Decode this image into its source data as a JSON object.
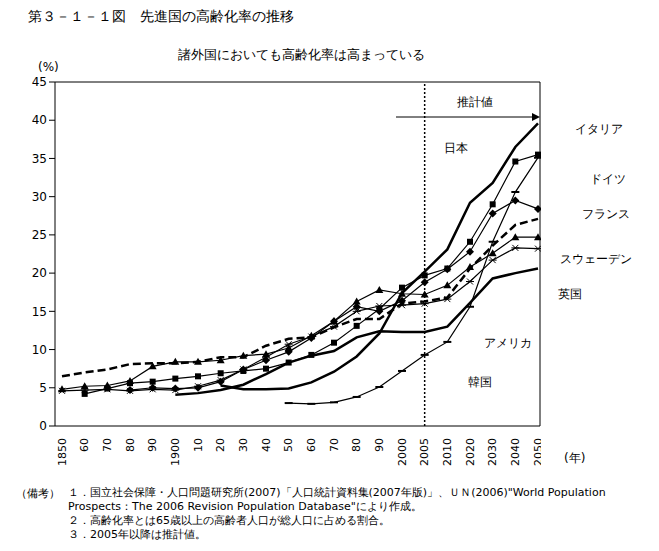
{
  "chart_data": {
    "type": "line",
    "title": "第３－１－１図　先進国の高齢化率の推移",
    "subtitle": "諸外国においても高齢化率は高まっている",
    "y_label": "(%)",
    "x_label": "(年)",
    "categories": [
      "1850",
      "60",
      "70",
      "80",
      "90",
      "1900",
      "10",
      "20",
      "30",
      "40",
      "50",
      "60",
      "70",
      "80",
      "90",
      "2000",
      "2005",
      "2010",
      "2020",
      "2030",
      "2040",
      "2050"
    ],
    "series": [
      {
        "name": "イタリア",
        "color": "#000000",
        "marker": "square",
        "line_style": "solid",
        "values": [
          null,
          4.2,
          4.9,
          5.6,
          5.8,
          6.2,
          6.5,
          6.9,
          7.2,
          7.5,
          8.3,
          9.3,
          10.9,
          13.1,
          15.3,
          18.1,
          19.7,
          20.6,
          24.1,
          29.0,
          34.6,
          35.5
        ]
      },
      {
        "name": "日本",
        "color": "#000000",
        "marker": "none",
        "line_style": "solid",
        "values": [
          null,
          null,
          null,
          null,
          null,
          null,
          null,
          5.3,
          4.8,
          4.8,
          4.9,
          5.7,
          7.1,
          9.1,
          12.1,
          17.4,
          20.2,
          23.1,
          29.2,
          31.8,
          36.5,
          39.6
        ]
      },
      {
        "name": "ドイツ",
        "color": "#000000",
        "marker": "diamond",
        "line_style": "solid",
        "values": [
          null,
          null,
          null,
          4.7,
          5.0,
          4.9,
          5.0,
          5.8,
          7.4,
          8.6,
          9.7,
          11.5,
          13.7,
          15.6,
          15.0,
          16.4,
          18.8,
          20.5,
          22.8,
          27.8,
          29.5,
          28.4
        ]
      },
      {
        "name": "フランス",
        "color": "#000000",
        "marker": "none",
        "line_style": "dashed",
        "values": [
          6.5,
          7.0,
          7.4,
          8.1,
          8.2,
          8.2,
          8.4,
          9.0,
          9.0,
          10.5,
          11.4,
          11.6,
          12.9,
          14.0,
          14.0,
          16.0,
          16.3,
          16.8,
          20.6,
          23.6,
          26.3,
          27.1
        ]
      },
      {
        "name": "スウェーデン",
        "color": "#000000",
        "marker": "triangle",
        "line_style": "solid",
        "values": [
          4.8,
          5.2,
          5.3,
          5.9,
          7.8,
          8.4,
          8.4,
          8.6,
          9.2,
          9.4,
          10.2,
          11.8,
          13.7,
          16.3,
          17.8,
          17.3,
          17.2,
          18.4,
          20.8,
          22.6,
          24.7,
          24.7
        ]
      },
      {
        "name": "英国",
        "color": "#000000",
        "marker": "star",
        "line_style": "solid",
        "values": [
          4.6,
          4.7,
          4.8,
          4.6,
          4.8,
          4.7,
          5.2,
          6.0,
          7.4,
          9.0,
          10.7,
          11.7,
          13.0,
          15.0,
          15.7,
          15.8,
          16.0,
          16.6,
          18.9,
          21.7,
          23.3,
          23.2
        ]
      },
      {
        "name": "アメリカ",
        "color": "#000000",
        "marker": "none",
        "line_style": "solid",
        "values": [
          null,
          null,
          null,
          null,
          null,
          4.1,
          4.3,
          4.7,
          5.4,
          6.8,
          8.3,
          9.2,
          9.8,
          11.6,
          12.4,
          12.3,
          12.3,
          13.0,
          16.1,
          19.3,
          20.0,
          20.6
        ]
      },
      {
        "name": "韓国",
        "color": "#000000",
        "marker": "dash",
        "line_style": "solid",
        "values": [
          null,
          null,
          null,
          null,
          null,
          null,
          null,
          null,
          null,
          null,
          3.0,
          2.9,
          3.1,
          3.8,
          5.1,
          7.2,
          9.3,
          11.0,
          15.6,
          24.1,
          30.6,
          35.1
        ]
      }
    ],
    "ylim": [
      0,
      45
    ],
    "yticks": [
      0,
      5,
      10,
      15,
      20,
      25,
      30,
      35,
      40,
      45
    ],
    "grid": false,
    "annotations": [
      {
        "text": "推計値",
        "x": "2005"
      }
    ],
    "notes_heading": "（備考）",
    "notes": [
      "１．国立社会保障・人口問題研究所(2007)「人口統計資料集(2007年版)」、ＵＮ(2006)\"World Population Prospects：The 2006 Revision Population Database\"により作成。",
      "２．高齢化率とは65歳以上の高齢者人口が総人口に占める割合。",
      "３．2005年以降は推計値。"
    ]
  }
}
